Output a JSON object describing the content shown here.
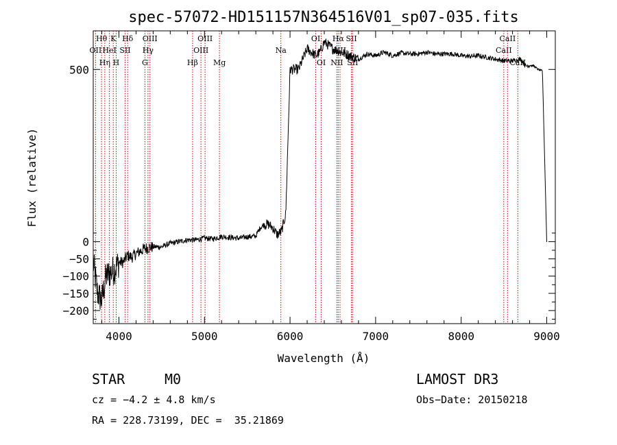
{
  "chart_data": {
    "type": "line",
    "title": "spec-57072-HD151157N364516V01_sp07-035.fits",
    "xlabel": "Wavelength (Å)",
    "ylabel": "Flux (relative)",
    "xlim": [
      3700,
      9100
    ],
    "ylim": [
      -238,
      612
    ],
    "xticks": [
      4000,
      5000,
      6000,
      7000,
      8000,
      9000
    ],
    "yticks": [
      -200,
      -150,
      -100,
      -50,
      0,
      500
    ],
    "ytick_labels": [
      "−200",
      "−150",
      "−100",
      "−50",
      "0",
      "500"
    ],
    "series": [
      {
        "name": "flux",
        "x": [
          3700,
          3750,
          3800,
          3850,
          3900,
          3950,
          4000,
          4050,
          4100,
          4150,
          4200,
          4300,
          4400,
          4500,
          4600,
          4700,
          4800,
          4900,
          5000,
          5100,
          5200,
          5300,
          5400,
          5500,
          5600,
          5650,
          5700,
          5750,
          5800,
          5850,
          5900,
          5950,
          6000,
          6100,
          6200,
          6300,
          6350,
          6400,
          6500,
          6600,
          6700,
          6800,
          6900,
          7000,
          7100,
          7200,
          7300,
          7400,
          7500,
          7600,
          7700,
          7800,
          7900,
          8000,
          8100,
          8200,
          8300,
          8400,
          8500,
          8600,
          8700,
          8750,
          8800,
          8850,
          8900,
          8950,
          9000
        ],
        "y": [
          -60,
          -150,
          -170,
          -100,
          -90,
          -80,
          -60,
          -60,
          -40,
          -45,
          -35,
          -20,
          -15,
          -15,
          -5,
          0,
          5,
          5,
          10,
          8,
          15,
          12,
          10,
          14,
          16,
          40,
          50,
          50,
          40,
          20,
          30,
          80,
          500,
          500,
          560,
          540,
          550,
          580,
          560,
          550,
          540,
          530,
          545,
          540,
          550,
          540,
          548,
          545,
          545,
          550,
          545,
          545,
          545,
          540,
          538,
          540,
          535,
          530,
          525,
          525,
          530,
          510,
          512,
          510,
          500,
          495,
          0
        ]
      }
    ],
    "lines": [
      {
        "name": "OII",
        "wl": 3727,
        "row": 2
      },
      {
        "name": "Hθ",
        "wl": 3797,
        "row": 1
      },
      {
        "name": "Hη",
        "wl": 3835,
        "row": 3
      },
      {
        "name": "HeI",
        "wl": 3889,
        "row": 2
      },
      {
        "name": "K",
        "wl": 3934,
        "row": 1
      },
      {
        "name": "H",
        "wl": 3968,
        "row": 3
      },
      {
        "name": "SII",
        "wl": 4072,
        "row": 2
      },
      {
        "name": "Hδ",
        "wl": 4102,
        "row": 1
      },
      {
        "name": "G",
        "wl": 4304,
        "row": 3
      },
      {
        "name": "Hγ",
        "wl": 4340,
        "row": 2
      },
      {
        "name": "OIII",
        "wl": 4363,
        "row": 1
      },
      {
        "name": "Hβ",
        "wl": 4861,
        "row": 3
      },
      {
        "name": "OIII",
        "wl": 4959,
        "row": 2
      },
      {
        "name": "OIII",
        "wl": 5007,
        "row": 1
      },
      {
        "name": "Mg",
        "wl": 5175,
        "row": 3
      },
      {
        "name": "Na",
        "wl": 5893,
        "row": 2
      },
      {
        "name": "OI",
        "wl": 6300,
        "row": 1
      },
      {
        "name": "OI",
        "wl": 6364,
        "row": 3
      },
      {
        "name": "NII",
        "wl": 6548,
        "row": 3
      },
      {
        "name": "Hα",
        "wl": 6563,
        "row": 1
      },
      {
        "name": "NII",
        "wl": 6584,
        "row": 2
      },
      {
        "name": "SII",
        "wl": 6717,
        "row": 1
      },
      {
        "name": "SII",
        "wl": 6731,
        "row": 3
      },
      {
        "name": "CaII",
        "wl": 8498,
        "row": 2
      },
      {
        "name": "CaII",
        "wl": 8542,
        "row": 1
      },
      {
        "name": "CaII",
        "wl": 8662,
        "row": 3
      }
    ]
  },
  "info": {
    "object_type": "STAR",
    "subclass": "M0",
    "survey": "LAMOST DR3",
    "cz": "cz = −4.2 ± 4.8 km/s",
    "obs_date": "Obs−Date: 20150218",
    "radec": "RA = 228.73199, DEC =  35.21869"
  }
}
